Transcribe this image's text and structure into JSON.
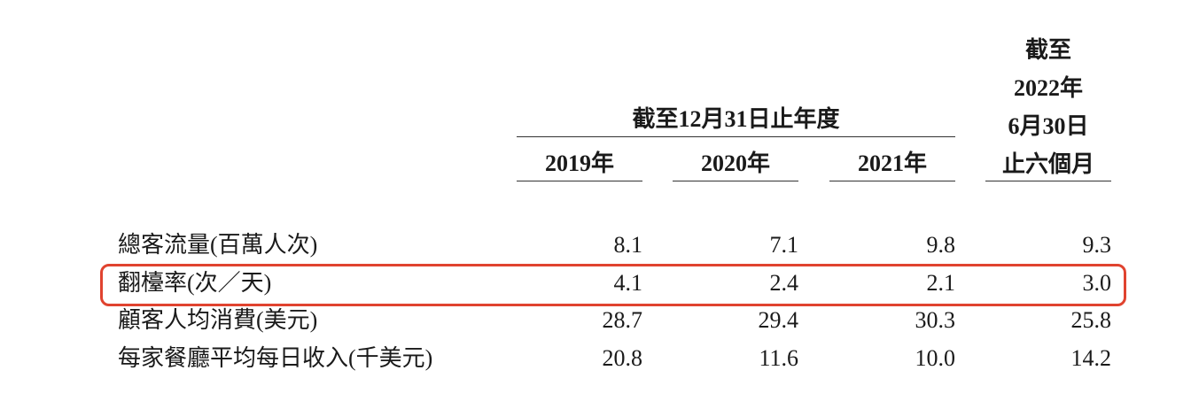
{
  "table": {
    "group_header": "截至12月31日止年度",
    "columns": [
      "2019年",
      "2020年",
      "2021年"
    ],
    "last_column": [
      "截至",
      "2022年",
      "6月30日",
      "止六個月"
    ],
    "rows": [
      [
        "總客流量(百萬人次)",
        "8.1",
        "7.1",
        "9.8",
        "9.3"
      ],
      [
        "翻檯率(次／天)",
        "4.1",
        "2.4",
        "2.1",
        "3.0"
      ],
      [
        "顧客人均消費(美元)",
        "28.7",
        "29.4",
        "30.3",
        "25.8"
      ],
      [
        "每家餐廳平均每日收入(千美元)",
        "20.8",
        "11.6",
        "10.0",
        "14.2"
      ]
    ]
  }
}
